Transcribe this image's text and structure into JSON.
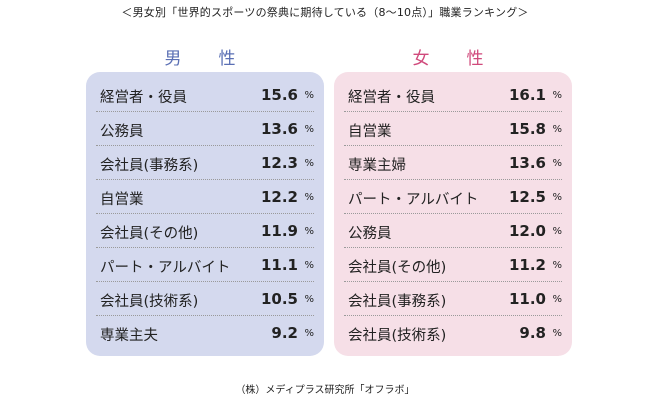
{
  "chart_data": {
    "type": "table",
    "title": "＜男女別「世界的スポーツの祭典に期待している（8〜10点）」職業ランキング＞",
    "unit": "%",
    "groups": [
      {
        "name": "男　性",
        "color": "#5a6fb4",
        "panel_color": "#d4d9ee",
        "rows": [
          {
            "label": "経営者・役員",
            "value": 15.6
          },
          {
            "label": "公務員",
            "value": 13.6
          },
          {
            "label": "会社員(事務系)",
            "value": 12.3
          },
          {
            "label": "自営業",
            "value": 12.2
          },
          {
            "label": "会社員(その他)",
            "value": 11.9
          },
          {
            "label": "パート・アルバイト",
            "value": 11.1
          },
          {
            "label": "会社員(技術系)",
            "value": 10.5
          },
          {
            "label": "専業主夫",
            "value": 9.2
          }
        ]
      },
      {
        "name": "女　性",
        "color": "#d04a7c",
        "panel_color": "#f6dfe7",
        "rows": [
          {
            "label": "経営者・役員",
            "value": 16.1
          },
          {
            "label": "自営業",
            "value": 15.8
          },
          {
            "label": "専業主婦",
            "value": 13.6
          },
          {
            "label": "パート・アルバイト",
            "value": 12.5
          },
          {
            "label": "公務員",
            "value": 12.0
          },
          {
            "label": "会社員(その他)",
            "value": 11.2
          },
          {
            "label": "会社員(事務系)",
            "value": 11.0
          },
          {
            "label": "会社員(技術系)",
            "value": 9.8
          }
        ]
      }
    ],
    "source": "（株）メディプラス研究所「オフラボ」"
  }
}
